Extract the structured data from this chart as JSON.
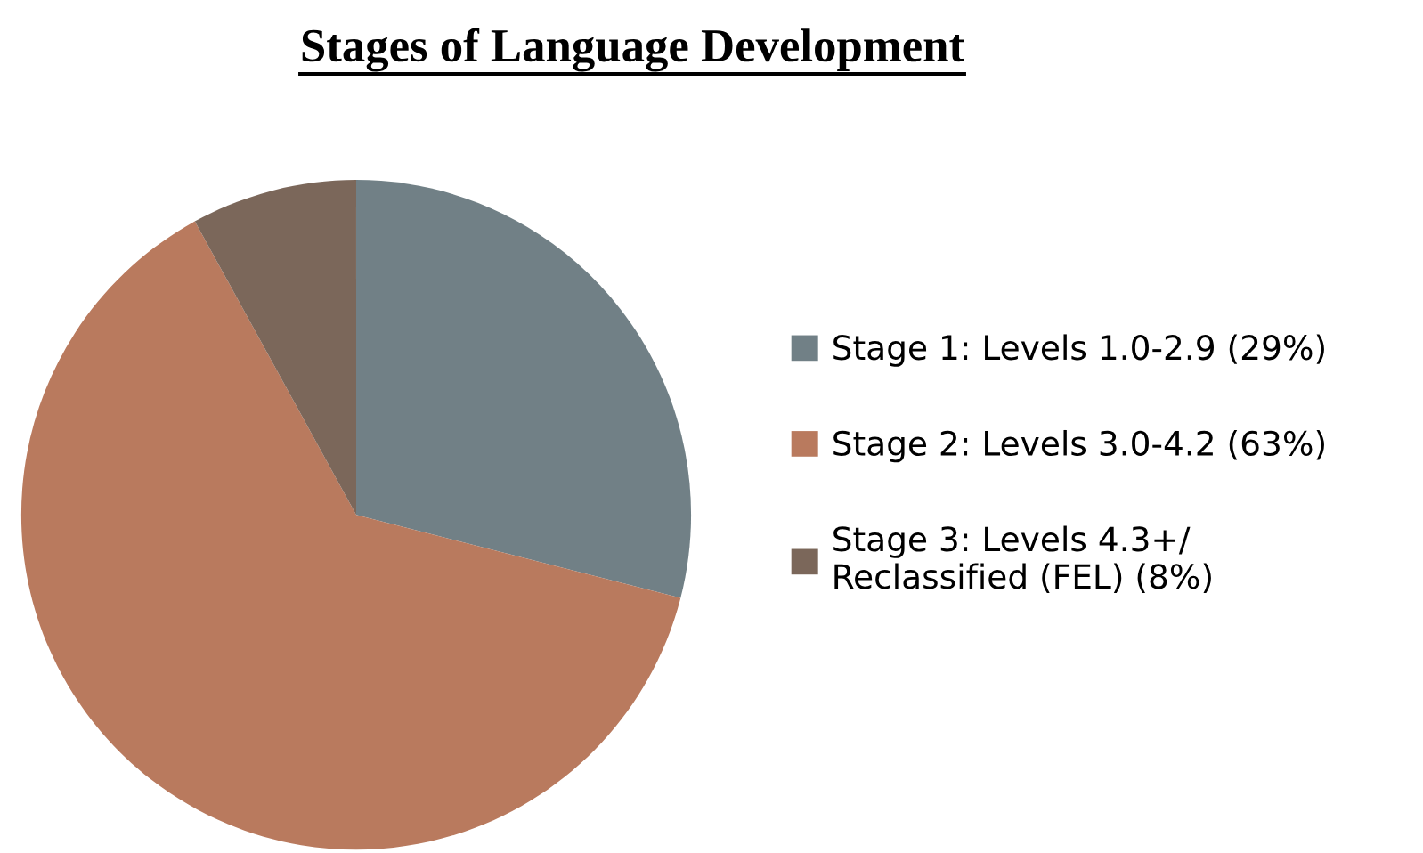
{
  "chart_data": {
    "type": "pie",
    "title": "Stages of Language Development",
    "categories": [
      "Stage 1: Levels 1.0-2.9 (29%)",
      "Stage 2: Levels 3.0-4.2 (63%)",
      "Stage 3: Levels 4.3+/\nReclassified (FEL) (8%)"
    ],
    "values": [
      29,
      63,
      8
    ],
    "colors": [
      "#718086",
      "#b97a5e",
      "#7b675a"
    ],
    "legend": "right"
  }
}
